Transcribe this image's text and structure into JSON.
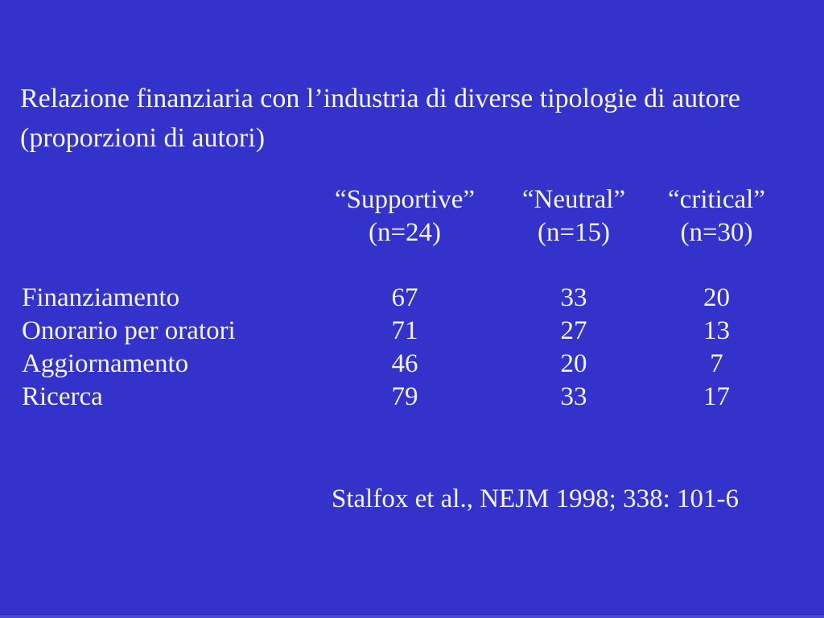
{
  "slide": {
    "background_color": "#3333cc",
    "text_color": "#f5f4f0",
    "title_line1": "Relazione finanziaria con l’industria di diverse tipologie di autore",
    "title_line2": "(proporzioni di autori)",
    "citation": "Stalfox et al., NEJM 1998; 338: 101-6"
  },
  "table": {
    "columns": [
      {
        "label": "“Supportive”",
        "n": "(n=24)"
      },
      {
        "label": "“Neutral”",
        "n": "(n=15)"
      },
      {
        "label": "“critical”",
        "n": "(n=30)"
      }
    ],
    "rows": [
      {
        "label": "Finanziamento",
        "values": [
          "67",
          "33",
          "20"
        ]
      },
      {
        "label": "Onorario per oratori",
        "values": [
          "71",
          "27",
          "13"
        ]
      },
      {
        "label": "Aggiornamento",
        "values": [
          "46",
          "20",
          "7"
        ]
      },
      {
        "label": "Ricerca",
        "values": [
          "79",
          "33",
          "17"
        ]
      }
    ]
  }
}
